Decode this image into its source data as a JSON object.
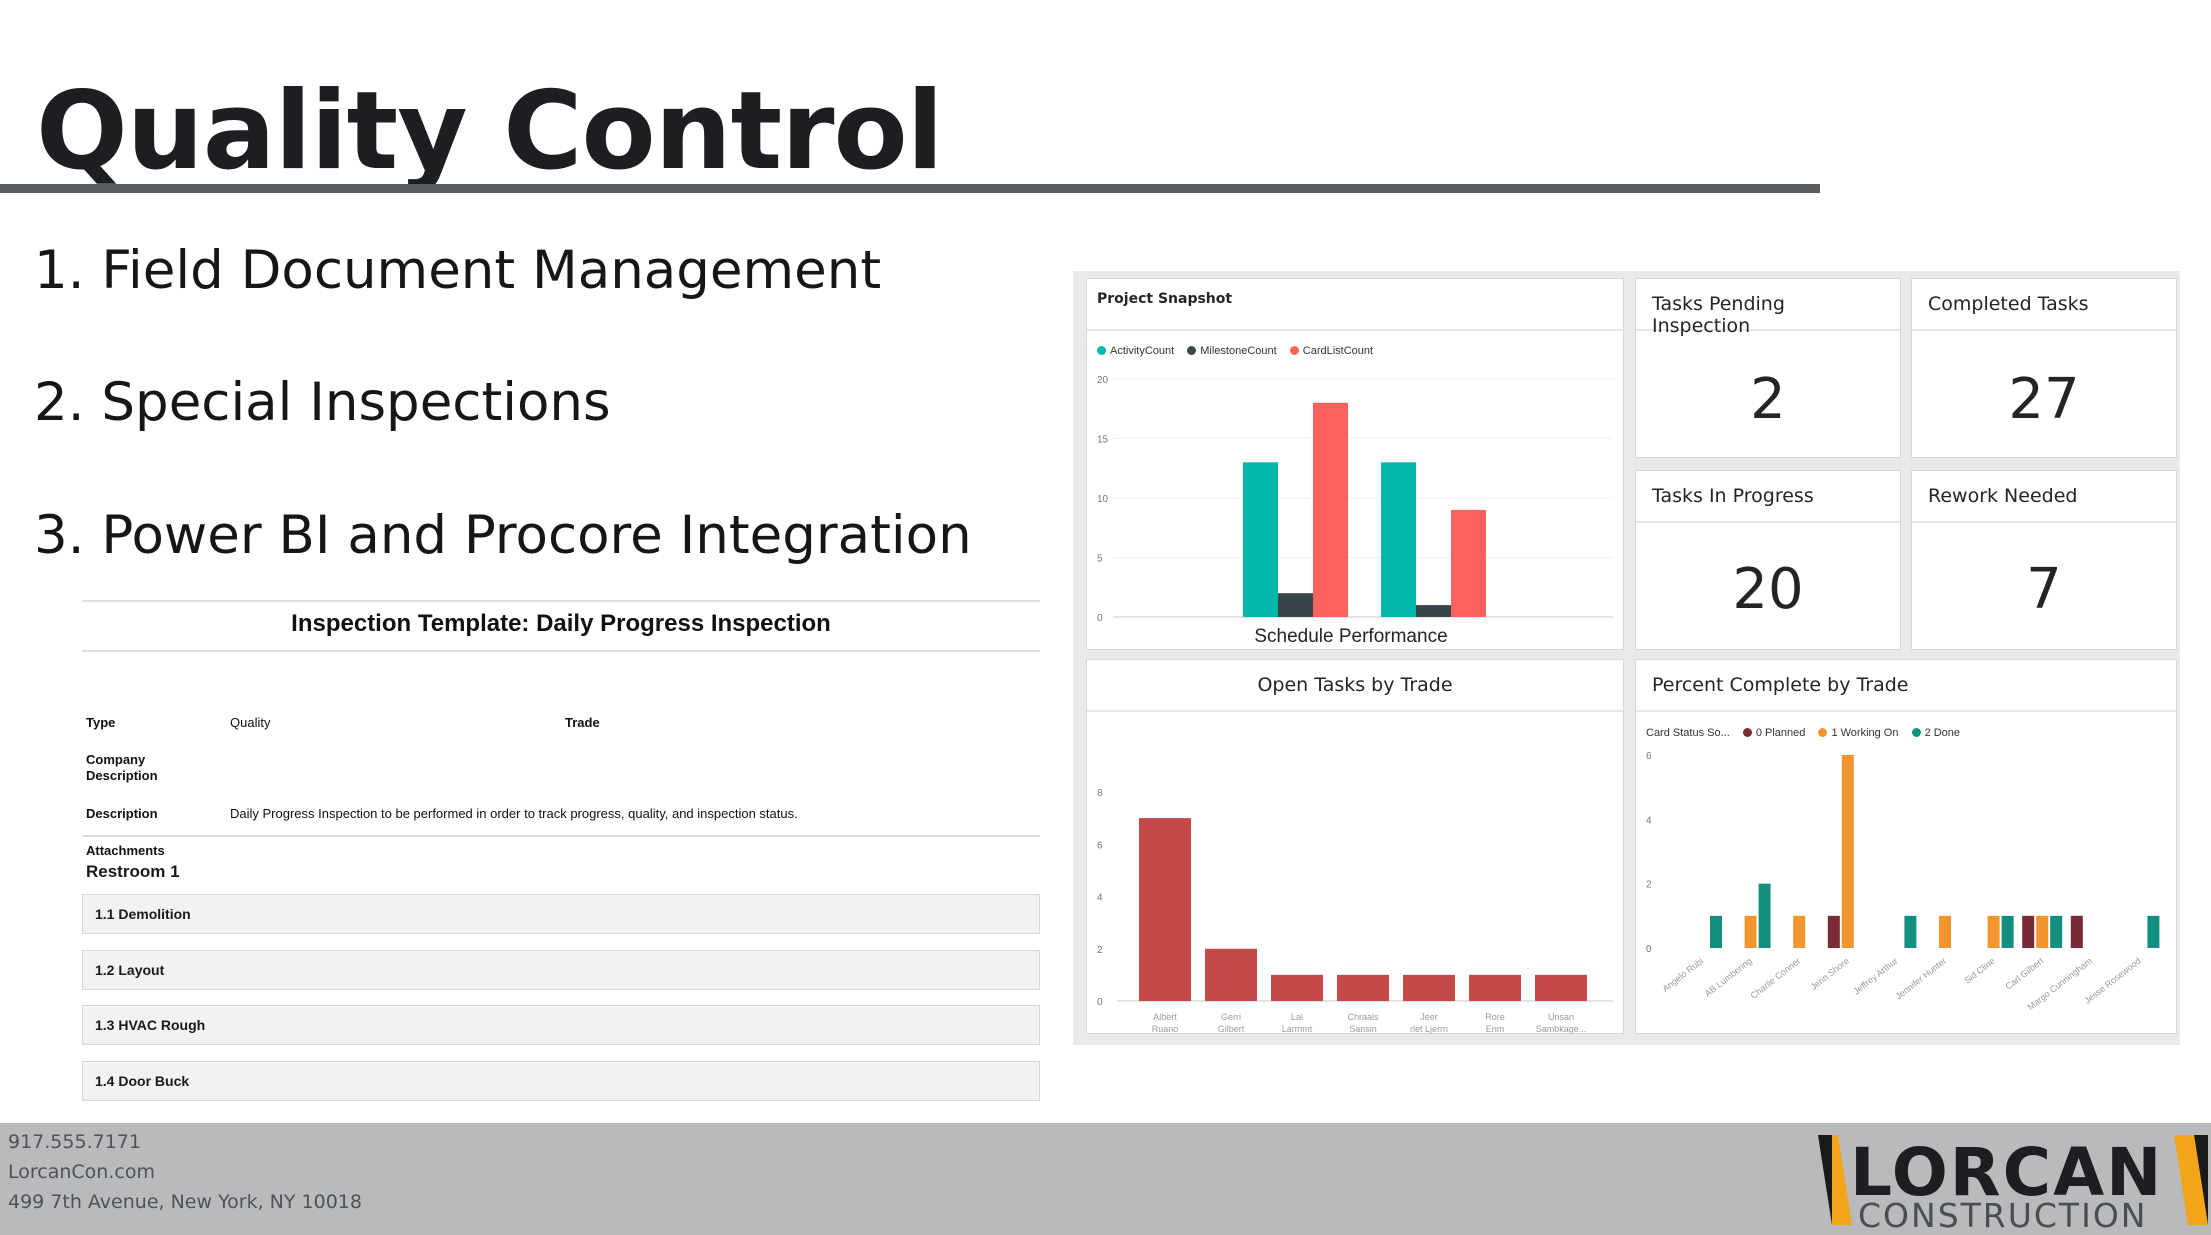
{
  "slide": {
    "title": "Quality Control",
    "agenda": [
      "1. Field Document Management",
      "2. Special Inspections",
      "3. Power BI and Procore Integration"
    ]
  },
  "inspection_form": {
    "title": "Inspection Template: Daily Progress Inspection",
    "fields": {
      "type_label": "Type",
      "type_value": "Quality",
      "trade_label": "Trade",
      "company_label": "Company\nDescription",
      "description_label": "Description",
      "description_value": "Daily Progress Inspection to be performed in order to track progress, quality, and inspection status.",
      "attachments_label": "Attachments"
    },
    "section": "Restroom 1",
    "items": [
      "1.1 Demolition",
      "1.2 Layout",
      "1.3 HVAC Rough",
      "1.4 Door Buck"
    ]
  },
  "dashboard": {
    "kpis": [
      {
        "label": "Tasks Pending Inspection",
        "value": "2"
      },
      {
        "label": "Completed Tasks",
        "value": "27"
      },
      {
        "label": "Tasks In Progress",
        "value": "20"
      },
      {
        "label": "Rework Needed",
        "value": "7"
      }
    ],
    "colors": {
      "teal": "#01b8aa",
      "dark": "#374649",
      "salmon": "#fd625e",
      "red": "#c44a49",
      "maroon": "#7b2b35",
      "orange": "#f2952f",
      "green": "#138f7f"
    }
  },
  "chart_data": [
    {
      "type": "bar",
      "title": "Project Snapshot",
      "subtitle": "Schedule Performance",
      "categories": [
        "",
        ""
      ],
      "series": [
        {
          "name": "ActivityCount",
          "values": [
            13,
            13
          ]
        },
        {
          "name": "MilestoneCount",
          "values": [
            2,
            1
          ]
        },
        {
          "name": "CardListCount",
          "values": [
            18,
            9
          ]
        }
      ],
      "ylim": [
        0,
        20
      ],
      "yticks": [
        "0",
        "5",
        "10",
        "15",
        "20"
      ],
      "legend": "top-left"
    },
    {
      "type": "bar",
      "title": "Open Tasks by Trade",
      "categories": [
        "Albert Ruano",
        "Gerri Gilbert",
        "Lal Larmmt",
        "Chraals Sansin",
        "Jeer rlet Ljerrn",
        "Rore Enm",
        "Unsan Sambkage..."
      ],
      "values": [
        7,
        2,
        1,
        1,
        1,
        1,
        1
      ],
      "ylim": [
        0,
        8
      ],
      "yticks": [
        "0",
        "2",
        "4",
        "6",
        "8"
      ]
    },
    {
      "type": "bar",
      "title": "Percent Complete by Trade",
      "legend_title": "Card Status So...",
      "categories": [
        "Angelo Rubi",
        "AB Lumbering",
        "Charlie Conner",
        "Jenn Shore",
        "Jeffrey Arthur",
        "Jennifer Hunter",
        "Sid Cline",
        "Carl Gilbert",
        "Margo Cunningham",
        "Jesse Rosewood"
      ],
      "series": [
        {
          "name": "0 Planned",
          "values": [
            0,
            0,
            0,
            1,
            0,
            0,
            0,
            1,
            1,
            0
          ]
        },
        {
          "name": "1 Working On",
          "values": [
            0,
            1,
            1,
            6,
            0,
            1,
            1,
            1,
            0,
            0
          ]
        },
        {
          "name": "2 Done",
          "values": [
            1,
            2,
            0,
            0,
            1,
            0,
            1,
            1,
            0,
            1
          ]
        }
      ],
      "ylim": [
        0,
        6
      ],
      "yticks": [
        "0",
        "2",
        "4",
        "6"
      ]
    }
  ],
  "footer": {
    "phone": "917.555.7171",
    "website": "LorcanCon.com",
    "address": "499 7th Avenue, New York, NY 10018",
    "logo_top": "LORCAN",
    "logo_bottom": "CONSTRUCTION"
  }
}
